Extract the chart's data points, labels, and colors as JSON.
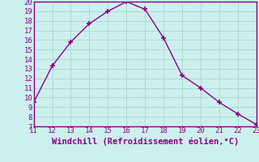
{
  "x": [
    11,
    12,
    13,
    14,
    15,
    16,
    17,
    18,
    19,
    20,
    21,
    22,
    23
  ],
  "y": [
    9.5,
    13.3,
    15.8,
    17.7,
    19.0,
    20.0,
    19.2,
    16.2,
    12.3,
    11.0,
    9.5,
    8.3,
    7.2
  ],
  "xlim": [
    11,
    23
  ],
  "ylim": [
    7,
    20
  ],
  "xticks": [
    11,
    12,
    13,
    14,
    15,
    16,
    17,
    18,
    19,
    20,
    21,
    22,
    23
  ],
  "yticks": [
    7,
    8,
    9,
    10,
    11,
    12,
    13,
    14,
    15,
    16,
    17,
    18,
    19,
    20
  ],
  "xlabel": "Windchill (Refroidissement éolien,°C)",
  "line_color": "#880088",
  "marker": "+",
  "bg_color": "#cdf0ee",
  "grid_color": "#aaddcc",
  "tick_fontsize": 6.5,
  "label_fontsize": 7.5
}
